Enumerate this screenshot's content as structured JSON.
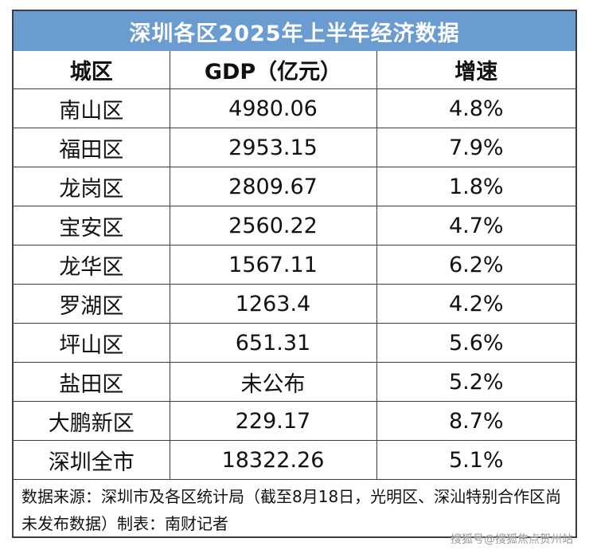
{
  "title": "深圳各区2025年上半年经济数据",
  "headers": [
    "城区",
    "GDP（亿元）",
    "增速"
  ],
  "rows": [
    {
      "district": "南山区",
      "gdp": "4980.06",
      "growth": "4.8%"
    },
    {
      "district": "福田区",
      "gdp": "2953.15",
      "growth": "7.9%"
    },
    {
      "district": "龙岗区",
      "gdp": "2809.67",
      "growth": "1.8%"
    },
    {
      "district": "宝安区",
      "gdp": "2560.22",
      "growth": "4.7%"
    },
    {
      "district": "龙华区",
      "gdp": "1567.11",
      "growth": "6.2%"
    },
    {
      "district": "罗湖区",
      "gdp": "1263.4",
      "growth": "4.2%"
    },
    {
      "district": "坪山区",
      "gdp": "651.31",
      "growth": "5.6%"
    },
    {
      "district": "盐田区",
      "gdp": "未公布",
      "growth": "5.2%"
    },
    {
      "district": "大鹏新区",
      "gdp": "229.17",
      "growth": "8.7%"
    },
    {
      "district": "深圳全市",
      "gdp": "18322.26",
      "growth": "5.1%"
    }
  ],
  "note": "数据来源：深圳市及各区统计局（截至8月18日，光明区、深汕特别合作区尚未发布数据）制表：南财记者",
  "watermark": "搜狐号@搜狐焦点贺州站"
}
